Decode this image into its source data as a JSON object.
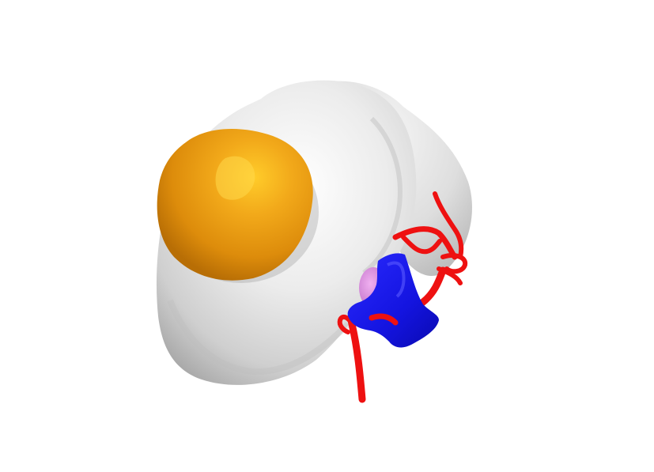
{
  "scene": {
    "background_color": "#ffffff",
    "structures": [
      {
        "id": "organ",
        "semantic": "white-organ-body",
        "color": "#e8e8e8"
      },
      {
        "id": "tumor",
        "semantic": "orange-tumor",
        "color": "#e8960e"
      },
      {
        "id": "artery",
        "semantic": "red-artery",
        "color": "#ee1111"
      },
      {
        "id": "vein",
        "semantic": "blue-vein",
        "color": "#1515e6"
      },
      {
        "id": "collecting-system",
        "semantic": "pink-collecting-system",
        "color": "#d98ad9"
      }
    ]
  }
}
